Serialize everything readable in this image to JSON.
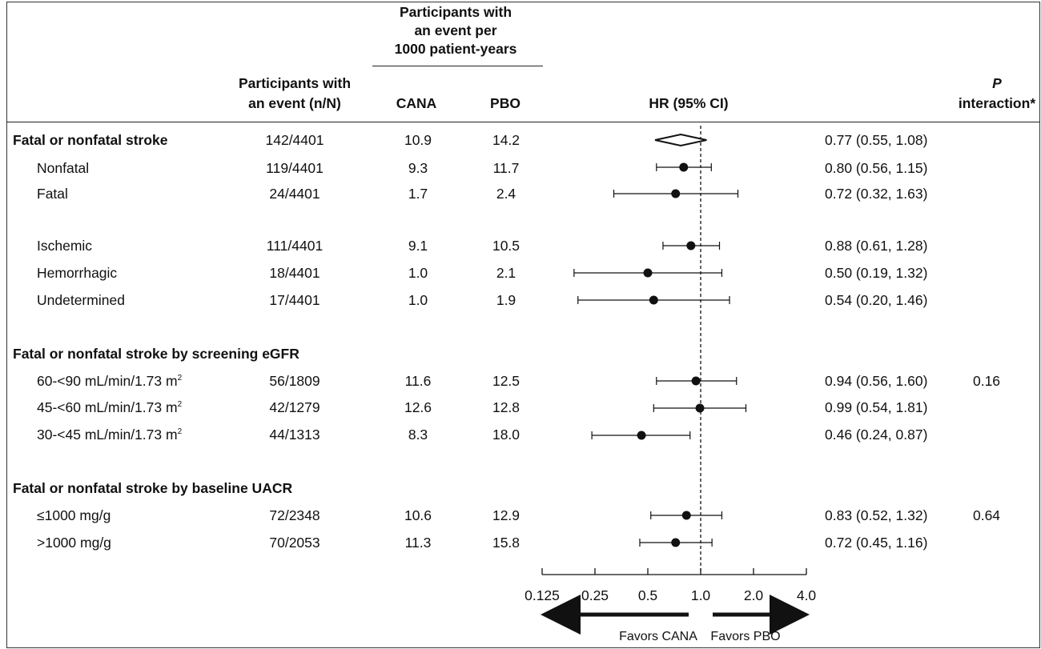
{
  "header": {
    "participants_event": [
      "Participants with",
      "an event (n/N)"
    ],
    "per1000": [
      "Participants with",
      "an event per",
      "1000 patient-years"
    ],
    "cana": "CANA",
    "pbo": "PBO",
    "hr": "HR (95% CI)",
    "p_interaction_p": "P",
    "p_interaction": "interaction*"
  },
  "rows": [
    {
      "label": "Fatal or nonfatal stroke",
      "bold": true,
      "n": "142/4401",
      "cana": "10.9",
      "pbo": "14.2",
      "ci_text": "0.77 (0.55, 1.08)",
      "p": ""
    },
    {
      "label": "Nonfatal",
      "n": "119/4401",
      "cana": "9.3",
      "pbo": "11.7",
      "ci_text": "0.80 (0.56, 1.15)",
      "p": ""
    },
    {
      "label": "Fatal",
      "n": "24/4401",
      "cana": "1.7",
      "pbo": "2.4",
      "ci_text": "0.72  (0.32, 1.63)",
      "p": ""
    },
    {
      "label": "Ischemic",
      "n": "111/4401",
      "cana": "9.1",
      "pbo": "10.5",
      "ci_text": "0.88 (0.61, 1.28)",
      "p": ""
    },
    {
      "label": "Hemorrhagic",
      "n": "18/4401",
      "cana": "1.0",
      "pbo": "2.1",
      "ci_text": "0.50 (0.19, 1.32)",
      "p": ""
    },
    {
      "label": "Undetermined",
      "n": "17/4401",
      "cana": "1.0",
      "pbo": "1.9",
      "ci_text": "0.54 (0.20, 1.46)",
      "p": ""
    },
    {
      "label": "60-<90 mL/min/1.73 m",
      "sup": "2",
      "n": "56/1809",
      "cana": "11.6",
      "pbo": "12.5",
      "ci_text": "0.94 (0.56, 1.60)",
      "p": "0.16"
    },
    {
      "label": "45-<60 mL/min/1.73 m",
      "sup": "2",
      "n": "42/1279",
      "cana": "12.6",
      "pbo": "12.8",
      "ci_text": "0.99 (0.54, 1.81)",
      "p": ""
    },
    {
      "label": "30-<45 mL/min/1.73 m",
      "sup": "2",
      "n": "44/1313",
      "cana": "8.3",
      "pbo": "18.0",
      "ci_text": "0.46 (0.24, 0.87)",
      "p": ""
    },
    {
      "label": "≤1000 mg/g",
      "n": "72/2348",
      "cana": "10.6",
      "pbo": "12.9",
      "ci_text": "0.83 (0.52, 1.32)",
      "p": "0.64"
    },
    {
      "label": ">1000 mg/g",
      "n": "70/2053",
      "cana": "11.3",
      "pbo": "15.8",
      "ci_text": "0.72 (0.45, 1.16)",
      "p": ""
    }
  ],
  "subheads": {
    "egfr": "Fatal or nonfatal stroke by screening eGFR",
    "uacr": "Fatal or nonfatal stroke by baseline UACR"
  },
  "axis": {
    "ticks": [
      "0.125",
      "0.25",
      "0.5",
      "1.0",
      "2.0",
      "4.0"
    ],
    "favors_left": "Favors CANA",
    "favors_right": "Favors PBO"
  },
  "chart_data": {
    "type": "forest",
    "x_scale": "log2",
    "xlim": [
      0.125,
      4.0
    ],
    "reference_line": 1.0,
    "points": [
      {
        "label": "Fatal or nonfatal stroke",
        "hr": 0.77,
        "lo": 0.55,
        "hi": 1.08,
        "marker": "diamond"
      },
      {
        "label": "Nonfatal",
        "hr": 0.8,
        "lo": 0.56,
        "hi": 1.15,
        "marker": "dot"
      },
      {
        "label": "Fatal",
        "hr": 0.72,
        "lo": 0.32,
        "hi": 1.63,
        "marker": "dot"
      },
      {
        "label": "Ischemic",
        "hr": 0.88,
        "lo": 0.61,
        "hi": 1.28,
        "marker": "dot"
      },
      {
        "label": "Hemorrhagic",
        "hr": 0.5,
        "lo": 0.19,
        "hi": 1.32,
        "marker": "dot"
      },
      {
        "label": "Undetermined",
        "hr": 0.54,
        "lo": 0.2,
        "hi": 1.46,
        "marker": "dot"
      },
      {
        "label": "60-<90 mL/min/1.73 m2",
        "hr": 0.94,
        "lo": 0.56,
        "hi": 1.6,
        "marker": "dot"
      },
      {
        "label": "45-<60 mL/min/1.73 m2",
        "hr": 0.99,
        "lo": 0.54,
        "hi": 1.81,
        "marker": "dot"
      },
      {
        "label": "30-<45 mL/min/1.73 m2",
        "hr": 0.46,
        "lo": 0.24,
        "hi": 0.87,
        "marker": "dot"
      },
      {
        "label": "≤1000 mg/g",
        "hr": 0.83,
        "lo": 0.52,
        "hi": 1.32,
        "marker": "dot"
      },
      {
        "label": ">1000 mg/g",
        "hr": 0.72,
        "lo": 0.45,
        "hi": 1.16,
        "marker": "dot"
      }
    ]
  }
}
